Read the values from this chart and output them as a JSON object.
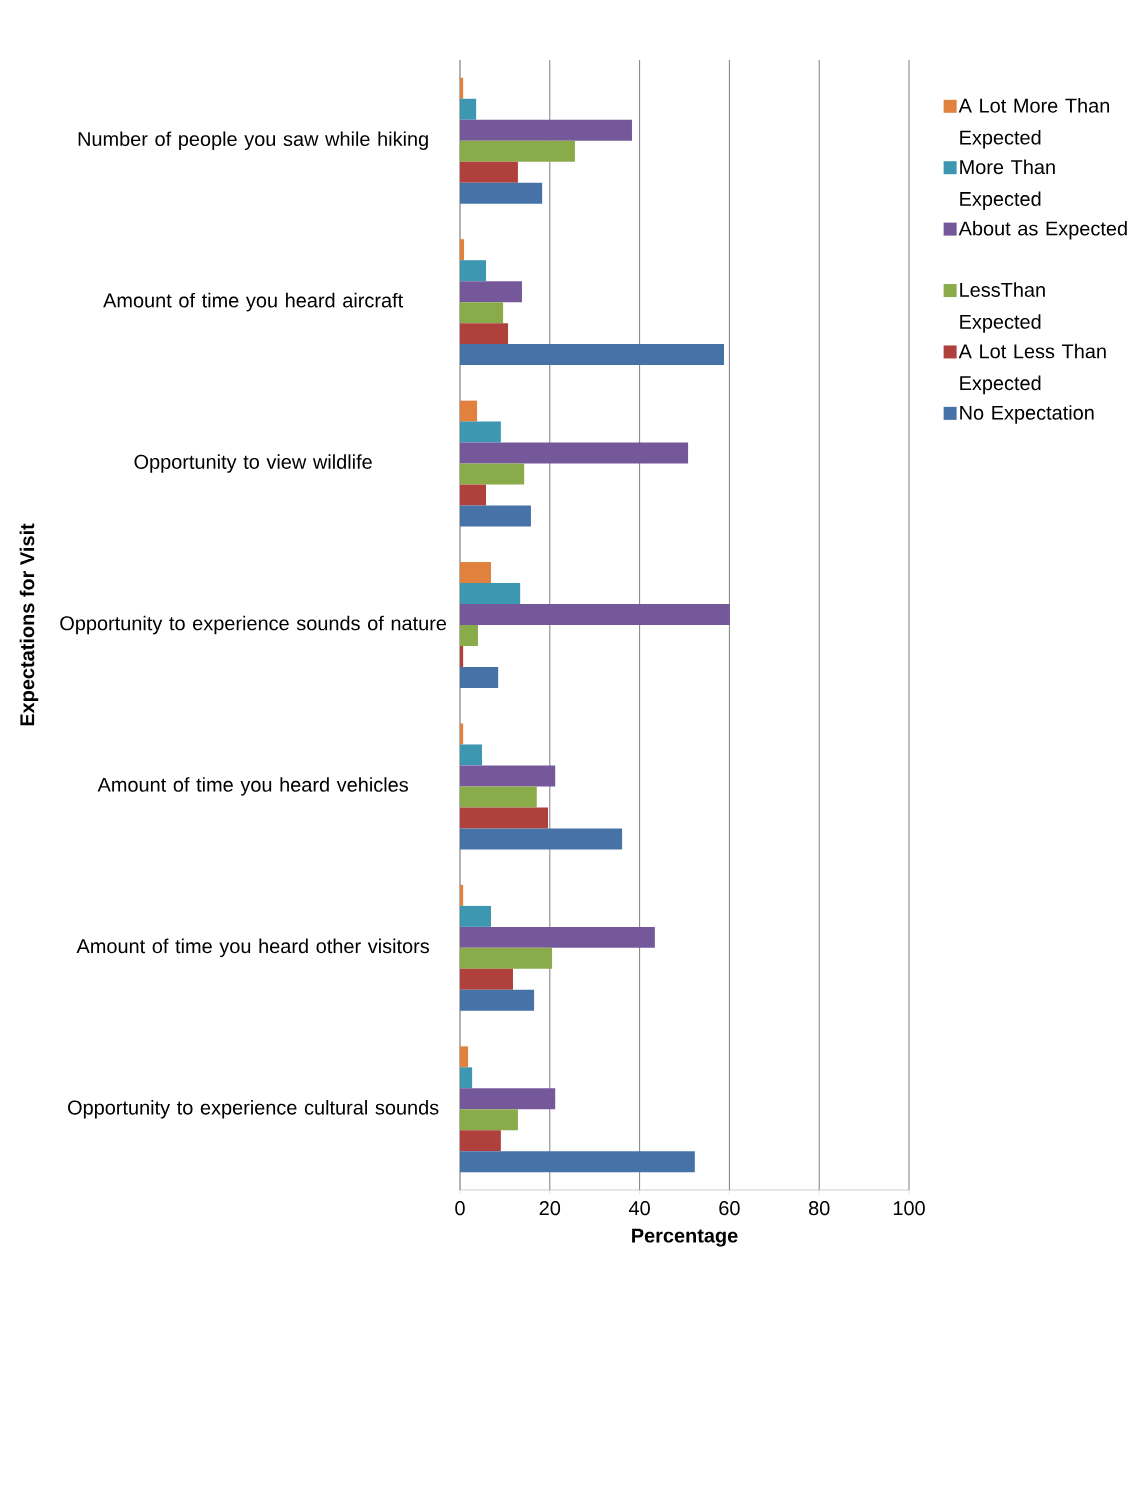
{
  "chart_data": {
    "type": "bar",
    "orientation": "horizontal",
    "xlabel": "Percentage",
    "ylabel": "Expectations for Visit",
    "categories": [
      "Number of people you saw while hiking",
      "Amount of time you heard aircraft",
      "Opportunity to view wildlife",
      "Opportunity to experience sounds of nature",
      "Amount of time you heard vehicles",
      "Amount of time you heard other visitors",
      "Opportunity to experience cultural sounds"
    ],
    "series": [
      {
        "name": "A Lot More Than Expected",
        "color": "#e0823d",
        "values": [
          0.7,
          0.9,
          3.8,
          6.9,
          0.7,
          0.7,
          1.8
        ]
      },
      {
        "name": "More Than Expected",
        "color": "#3d97b0",
        "values": [
          3.6,
          5.8,
          9.1,
          13.4,
          4.9,
          6.9,
          2.7
        ]
      },
      {
        "name": "About as Expected",
        "color": "#74589a",
        "values": [
          38.3,
          13.8,
          50.8,
          60.1,
          21.2,
          43.4,
          21.2
        ]
      },
      {
        "name": "LessThan Expected",
        "color": "#8aab4a",
        "values": [
          25.6,
          9.6,
          14.3,
          4.0,
          17.1,
          20.5,
          12.9
        ]
      },
      {
        "name": "A Lot Less Than Expected",
        "color": "#b0403c",
        "values": [
          12.9,
          10.7,
          5.8,
          0.7,
          19.6,
          11.8,
          9.1
        ]
      },
      {
        "name": "No Expectation",
        "color": "#4672a8",
        "values": [
          18.3,
          58.8,
          15.8,
          8.5,
          36.1,
          16.5,
          52.3
        ]
      }
    ],
    "xlim": [
      0,
      100
    ],
    "xticks": [
      0,
      20,
      40,
      60,
      80,
      100
    ],
    "grid": "x",
    "legend": "right"
  }
}
